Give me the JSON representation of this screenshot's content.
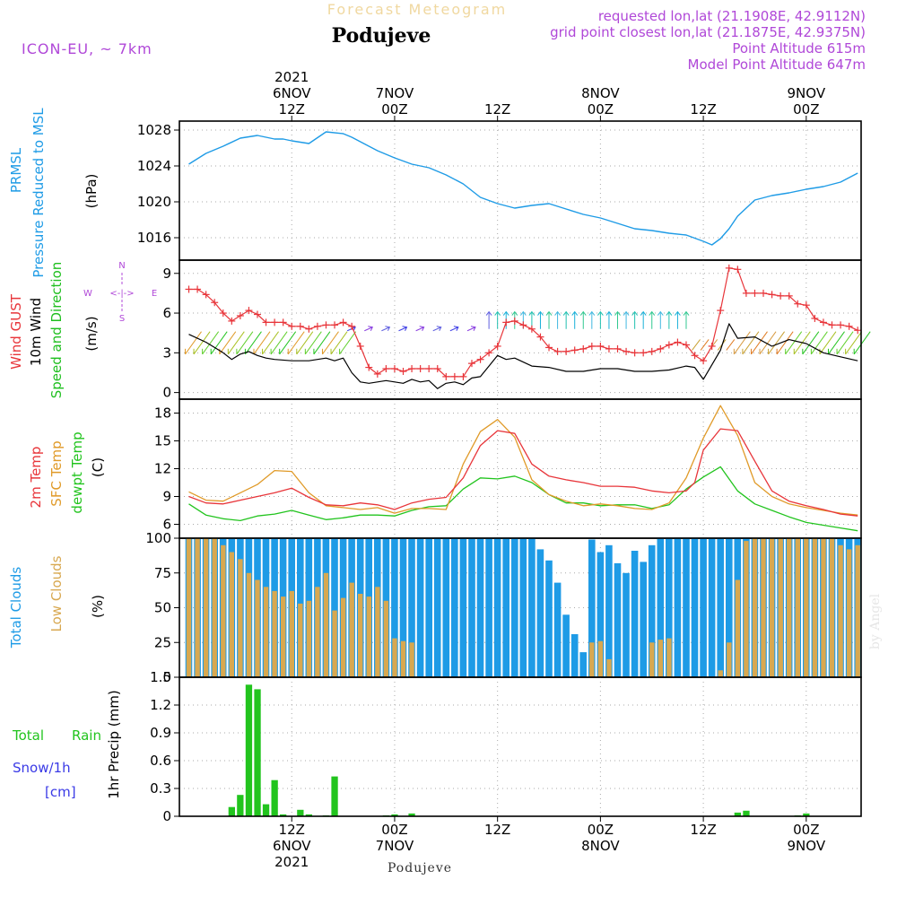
{
  "header": {
    "title_faded": "Forecast Meteogram",
    "location": "Podujeve",
    "model": "ICON-EU, ~ 7km",
    "requested_point": "requested lon,lat (21.1908E, 42.9112N)",
    "grid_point": "grid point closest lon,lat (21.1875E, 42.9375N)",
    "point_altitude": "Point Altitude 615m",
    "model_altitude": "Model Point Altitude 647m",
    "footer_location": "Podujeve",
    "watermark": "by Angel"
  },
  "time_axis": {
    "top_labels": [
      {
        "h": 12,
        "lines": [
          "2021",
          "6NOV",
          "12Z"
        ]
      },
      {
        "h": 24,
        "lines": [
          "7NOV",
          "00Z"
        ]
      },
      {
        "h": 36,
        "lines": [
          "12Z"
        ]
      },
      {
        "h": 48,
        "lines": [
          "8NOV",
          "00Z"
        ]
      },
      {
        "h": 60,
        "lines": [
          "12Z"
        ]
      },
      {
        "h": 72,
        "lines": [
          "9NOV",
          "00Z"
        ]
      }
    ],
    "bottom_labels": [
      {
        "h": 12,
        "lines": [
          "12Z",
          "6NOV",
          "2021"
        ]
      },
      {
        "h": 24,
        "lines": [
          "00Z",
          "7NOV"
        ]
      },
      {
        "h": 36,
        "lines": [
          "12Z"
        ]
      },
      {
        "h": 48,
        "lines": [
          "00Z",
          "8NOV"
        ]
      },
      {
        "h": 60,
        "lines": [
          "12Z"
        ]
      },
      {
        "h": 72,
        "lines": [
          "00Z",
          "9NOV"
        ]
      }
    ]
  },
  "colors": {
    "pressure": "#1e9be6",
    "gust": "#e8353a",
    "wind": "#000000",
    "wind_dir": "#1fbf1f",
    "temp": "#e8353a",
    "sfc": "#e09a28",
    "dew": "#22c41e",
    "total_clouds": "#1e9be6",
    "low_clouds": "#d8a850",
    "rain": "#22c41e",
    "snow": "#3a3ae6",
    "meta": "#b048d8"
  },
  "panel_labels": {
    "pressure": {
      "a": "PRMSL",
      "b": "Pressure Reduced to MSL",
      "unit": "(hPa)"
    },
    "wind": {
      "a": "Wind GUST",
      "b": "10m Wind",
      "c": "Speed and Direction",
      "unit": "(m/s)",
      "compass_n": "N",
      "compass_s": "S",
      "compass_w": "W",
      "compass_e": "E",
      "compass_mid": "<-|->"
    },
    "temp": {
      "a": "2m Temp",
      "b": "SFC Temp",
      "c": "dewpt Temp",
      "unit": "(C)"
    },
    "clouds": {
      "a": "Total Clouds",
      "b": "Low Clouds",
      "unit": "(%)"
    },
    "precip": {
      "a1": "Total",
      "a2": "Rain",
      "b": "Snow/1h",
      "c": "[cm]",
      "unit": "1hr Precip (mm)"
    }
  },
  "chart_data": [
    {
      "type": "line",
      "name": "Pressure",
      "ylabel": "(hPa)",
      "ylim": [
        1013.5,
        1029
      ],
      "yticks": [
        1016,
        1020,
        1024,
        1028
      ],
      "series": [
        {
          "name": "PRMSL",
          "x": [
            0,
            2,
            4,
            6,
            8,
            10,
            11,
            12,
            14,
            16,
            18,
            19,
            20,
            22,
            24,
            26,
            28,
            30,
            32,
            34,
            36,
            38,
            40,
            42,
            44,
            46,
            48,
            50,
            52,
            54,
            56,
            58,
            60,
            61,
            62,
            63,
            64,
            66,
            68,
            70,
            72,
            74,
            76,
            78
          ],
          "values": [
            1024.2,
            1025.4,
            1026.2,
            1027.1,
            1027.4,
            1027.0,
            1027.0,
            1026.8,
            1026.5,
            1027.8,
            1027.6,
            1027.2,
            1026.7,
            1025.7,
            1024.9,
            1024.2,
            1023.8,
            1023.0,
            1022.0,
            1020.5,
            1019.8,
            1019.3,
            1019.6,
            1019.8,
            1019.2,
            1018.6,
            1018.2,
            1017.6,
            1017.0,
            1016.8,
            1016.5,
            1016.3,
            1015.6,
            1015.2,
            1015.9,
            1017.0,
            1018.4,
            1020.2,
            1020.7,
            1021.0,
            1021.4,
            1021.7,
            1022.2,
            1023.2
          ]
        }
      ]
    },
    {
      "type": "line",
      "name": "Wind",
      "ylabel": "(m/s)",
      "ylim": [
        -0.5,
        10
      ],
      "yticks": [
        0,
        3,
        6,
        9
      ],
      "series": [
        {
          "name": "Wind GUST",
          "x": [
            0,
            1,
            2,
            3,
            4,
            5,
            6,
            7,
            8,
            9,
            10,
            11,
            12,
            13,
            14,
            15,
            16,
            17,
            18,
            19,
            20,
            21,
            22,
            23,
            24,
            25,
            26,
            27,
            28,
            29,
            30,
            31,
            32,
            33,
            34,
            35,
            36,
            37,
            38,
            39,
            40,
            41,
            42,
            43,
            44,
            45,
            46,
            47,
            48,
            49,
            50,
            51,
            52,
            53,
            54,
            55,
            56,
            57,
            58,
            59,
            60,
            61,
            62,
            63,
            64,
            65,
            66,
            67,
            68,
            69,
            70,
            71,
            72,
            73,
            74,
            75,
            76,
            77,
            78
          ],
          "values": [
            7.8,
            7.8,
            7.4,
            6.8,
            6.0,
            5.4,
            5.8,
            6.2,
            5.9,
            5.3,
            5.3,
            5.3,
            5.0,
            5.0,
            4.8,
            5.0,
            5.1,
            5.1,
            5.3,
            5.0,
            3.5,
            1.9,
            1.4,
            1.8,
            1.8,
            1.6,
            1.8,
            1.8,
            1.8,
            1.8,
            1.2,
            1.2,
            1.2,
            2.2,
            2.5,
            3.0,
            3.5,
            5.3,
            5.4,
            5.1,
            4.8,
            4.2,
            3.4,
            3.1,
            3.1,
            3.2,
            3.3,
            3.5,
            3.5,
            3.3,
            3.3,
            3.1,
            3.0,
            3.0,
            3.1,
            3.3,
            3.6,
            3.8,
            3.6,
            2.8,
            2.4,
            3.5,
            6.2,
            9.4,
            9.3,
            7.5,
            7.5,
            7.5,
            7.4,
            7.3,
            7.3,
            6.7,
            6.6,
            5.6,
            5.3,
            5.1,
            5.1,
            5.0,
            4.7
          ]
        },
        {
          "name": "10m Wind",
          "x": [
            0,
            2,
            4,
            5,
            6,
            7,
            8,
            9,
            10,
            12,
            14,
            16,
            17,
            18,
            19,
            20,
            21,
            22,
            23,
            24,
            25,
            26,
            27,
            28,
            29,
            30,
            31,
            32,
            33,
            34,
            35,
            36,
            37,
            38,
            40,
            42,
            44,
            46,
            48,
            50,
            52,
            54,
            56,
            58,
            59,
            60,
            62,
            63,
            64,
            66,
            68,
            70,
            72,
            74,
            76,
            78
          ],
          "values": [
            4.4,
            3.8,
            3.0,
            2.5,
            2.9,
            3.1,
            2.8,
            2.6,
            2.5,
            2.4,
            2.4,
            2.6,
            2.4,
            2.6,
            1.5,
            0.8,
            0.7,
            0.8,
            0.9,
            0.8,
            0.7,
            1.0,
            0.8,
            0.9,
            0.3,
            0.7,
            0.8,
            0.6,
            1.1,
            1.2,
            2.0,
            2.8,
            2.5,
            2.6,
            2.0,
            1.9,
            1.6,
            1.6,
            1.8,
            1.8,
            1.6,
            1.6,
            1.7,
            2.0,
            1.9,
            1.0,
            3.2,
            5.2,
            4.1,
            4.2,
            3.5,
            4.0,
            3.7,
            3.0,
            2.7,
            2.4
          ]
        }
      ]
    },
    {
      "type": "line",
      "name": "Temperature",
      "ylabel": "(C)",
      "ylim": [
        4.5,
        19.5
      ],
      "yticks": [
        6,
        9,
        12,
        15,
        18
      ],
      "series": [
        {
          "name": "2m Temp",
          "x": [
            0,
            2,
            4,
            6,
            8,
            10,
            12,
            14,
            16,
            18,
            20,
            22,
            24,
            26,
            28,
            30,
            32,
            34,
            36,
            38,
            40,
            42,
            44,
            46,
            48,
            50,
            52,
            54,
            56,
            58,
            59,
            60,
            62,
            64,
            66,
            68,
            70,
            72,
            74,
            76,
            78
          ],
          "values": [
            9.0,
            8.3,
            8.2,
            8.6,
            9.0,
            9.4,
            9.9,
            8.9,
            8.1,
            8.0,
            8.3,
            8.1,
            7.6,
            8.3,
            8.7,
            8.9,
            11.0,
            14.5,
            16.1,
            15.8,
            12.5,
            11.2,
            10.8,
            10.5,
            10.1,
            10.1,
            10.0,
            9.6,
            9.4,
            9.6,
            10.5,
            14.0,
            16.3,
            16.1,
            12.8,
            9.6,
            8.5,
            8.0,
            7.6,
            7.1,
            6.9
          ]
        },
        {
          "name": "SFC Temp",
          "x": [
            0,
            2,
            4,
            6,
            8,
            10,
            12,
            14,
            16,
            18,
            20,
            22,
            24,
            26,
            28,
            30,
            32,
            34,
            36,
            38,
            40,
            42,
            44,
            46,
            48,
            50,
            52,
            54,
            56,
            58,
            60,
            62,
            64,
            66,
            68,
            70,
            72,
            74,
            76,
            78
          ],
          "values": [
            9.5,
            8.6,
            8.5,
            9.4,
            10.3,
            11.8,
            11.7,
            9.4,
            8.0,
            7.8,
            7.6,
            7.8,
            7.2,
            7.7,
            7.7,
            7.6,
            12.5,
            16.0,
            17.3,
            15.4,
            10.8,
            9.2,
            8.5,
            8.0,
            8.2,
            8.0,
            7.7,
            7.6,
            8.3,
            11.0,
            15.3,
            18.8,
            15.6,
            10.5,
            9.0,
            8.2,
            7.8,
            7.5,
            7.2,
            7.0
          ]
        },
        {
          "name": "dewpt Temp",
          "x": [
            0,
            2,
            4,
            6,
            8,
            10,
            12,
            14,
            16,
            18,
            20,
            22,
            24,
            26,
            28,
            30,
            32,
            34,
            36,
            38,
            40,
            42,
            44,
            46,
            48,
            50,
            52,
            54,
            56,
            58,
            60,
            62,
            64,
            66,
            68,
            70,
            72,
            74,
            76,
            78
          ],
          "values": [
            8.2,
            7.0,
            6.6,
            6.4,
            6.9,
            7.1,
            7.5,
            7.0,
            6.5,
            6.7,
            7.0,
            7.0,
            6.9,
            7.5,
            7.9,
            8.0,
            9.8,
            11.0,
            10.9,
            11.2,
            10.5,
            9.2,
            8.3,
            8.3,
            8.0,
            8.1,
            8.1,
            7.7,
            8.1,
            9.8,
            11.1,
            12.2,
            9.6,
            8.2,
            7.5,
            6.8,
            6.2,
            5.9,
            5.6,
            5.3
          ]
        }
      ]
    },
    {
      "type": "bar",
      "name": "Clouds",
      "ylabel": "(%)",
      "ylim": [
        0,
        100
      ],
      "yticks": [
        0,
        25,
        50,
        75,
        100
      ],
      "x_start": 0,
      "x_step": 1,
      "series": [
        {
          "name": "Total Clouds",
          "values": [
            100,
            100,
            100,
            100,
            100,
            100,
            100,
            100,
            100,
            100,
            100,
            100,
            100,
            100,
            100,
            100,
            100,
            100,
            100,
            100,
            100,
            100,
            100,
            100,
            100,
            100,
            100,
            100,
            100,
            100,
            100,
            100,
            100,
            100,
            100,
            100,
            100,
            100,
            100,
            100,
            100,
            92,
            84,
            68,
            45,
            31,
            18,
            99,
            90,
            95,
            82,
            75,
            91,
            83,
            95,
            100,
            100,
            100,
            100,
            100,
            100,
            100,
            100,
            100,
            100,
            100,
            100,
            100,
            100,
            100,
            100,
            100,
            100,
            100,
            100,
            100,
            100,
            100,
            100
          ]
        },
        {
          "name": "Low Clouds",
          "values": [
            100,
            100,
            100,
            100,
            95,
            90,
            85,
            75,
            70,
            65,
            62,
            58,
            62,
            53,
            55,
            65,
            75,
            48,
            57,
            68,
            60,
            58,
            65,
            55,
            28,
            26,
            25,
            0,
            0,
            0,
            0,
            0,
            0,
            0,
            0,
            0,
            0,
            0,
            0,
            0,
            0,
            0,
            0,
            0,
            0,
            0,
            0,
            25,
            26,
            13,
            0,
            0,
            0,
            0,
            25,
            27,
            28,
            0,
            0,
            0,
            0,
            0,
            5,
            25,
            70,
            98,
            100,
            100,
            100,
            100,
            100,
            100,
            100,
            100,
            100,
            100,
            95,
            92,
            95
          ]
        }
      ]
    },
    {
      "type": "bar",
      "name": "Precipitation",
      "ylabel": "1hr Precip (mm)",
      "ylim": [
        0,
        1.5
      ],
      "yticks": [
        0,
        0.3,
        0.6,
        0.9,
        1.2,
        1.5
      ],
      "series": [
        {
          "name": "Total Rain",
          "x": [
            5,
            6,
            7,
            8,
            9,
            10,
            11,
            13,
            14,
            16,
            17,
            23,
            24,
            26,
            64,
            65,
            71,
            72
          ],
          "values": [
            0.1,
            0.23,
            1.42,
            1.37,
            0.13,
            0.39,
            0.02,
            0.07,
            0.02,
            0.01,
            0.43,
            0.01,
            0.02,
            0.03,
            0.04,
            0.06,
            0.01,
            0.03
          ]
        }
      ]
    }
  ]
}
